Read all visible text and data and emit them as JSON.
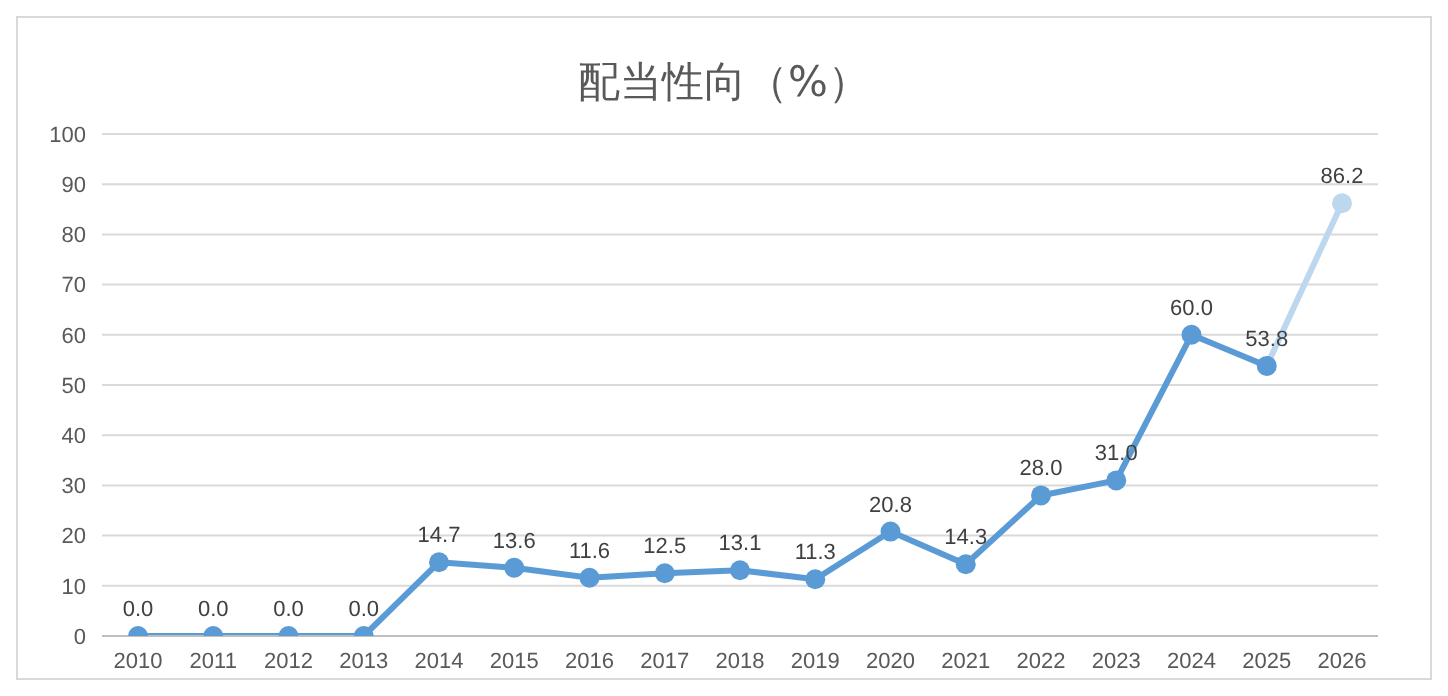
{
  "chart_data": {
    "type": "line",
    "title": "配当性向（%）",
    "categories": [
      "2010",
      "2011",
      "2012",
      "2013",
      "2014",
      "2015",
      "2016",
      "2017",
      "2018",
      "2019",
      "2020",
      "2021",
      "2022",
      "2023",
      "2024",
      "2025",
      "2026"
    ],
    "series": [
      {
        "color": "#5b9bd5",
        "colors": [
          null,
          null,
          null,
          null,
          null,
          null,
          null,
          null,
          null,
          null,
          null,
          null,
          null,
          null,
          null,
          null,
          "#bdd7ee"
        ],
        "values": [
          0,
          0,
          0,
          0,
          14.7,
          13.6,
          11.6,
          12.5,
          13.1,
          11.3,
          20.8,
          14.3,
          28.0,
          31.0,
          60.0,
          53.8,
          86.2
        ],
        "value_labels": [
          "0.0",
          "0.0",
          "0.0",
          "0.0",
          "14.7",
          "13.6",
          "11.6",
          "12.5",
          "13.1",
          "11.3",
          "20.8",
          "14.3",
          "28.0",
          "31.0",
          "60.0",
          "53.8",
          "86.2"
        ]
      }
    ],
    "ylim": [
      0,
      100
    ],
    "yticks": [
      0,
      10,
      20,
      30,
      40,
      50,
      60,
      70,
      80,
      90,
      100
    ],
    "grid": "y",
    "marker": "circle",
    "line_style": "solid"
  }
}
